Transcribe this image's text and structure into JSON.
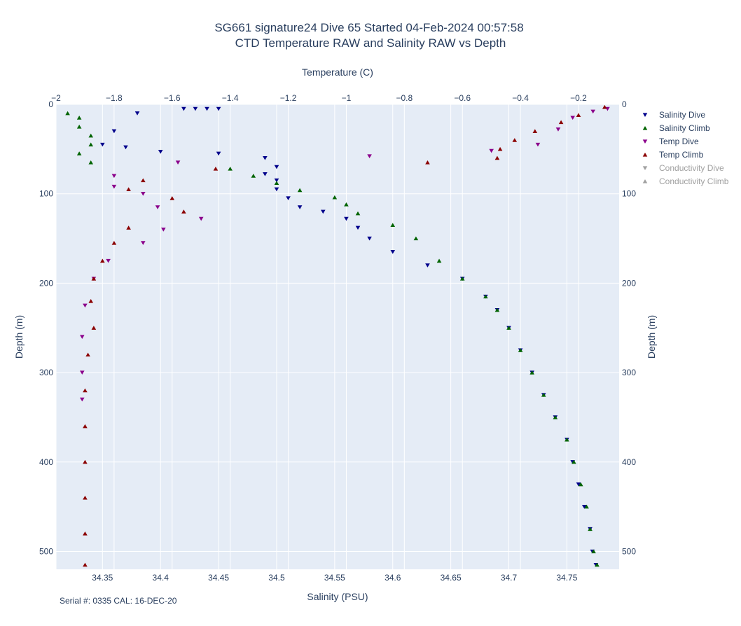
{
  "chart_data": {
    "type": "scatter",
    "title": "SG661 signature24 Dive 65 Started 04-Feb-2024 00:57:58",
    "subtitle": "CTD Temperature RAW and Salinity RAW vs Depth",
    "xlabel_top": "Temperature (C)",
    "xlabel_bottom": "Salinity (PSU)",
    "ylabel_left": "Depth (m)",
    "ylabel_right": "Depth (m)",
    "footnote": "Serial #: 0335  CAL: 16-DEC-20",
    "xlim_temperature": [
      -2.0,
      -0.06
    ],
    "xlim_salinity": [
      34.31,
      34.795
    ],
    "ylim_depth": [
      520,
      0
    ],
    "temperature_ticks": [
      "−2",
      "−1.8",
      "−1.6",
      "−1.4",
      "−1.2",
      "−1",
      "−0.8",
      "−0.6",
      "−0.4",
      "−0.2"
    ],
    "salinity_ticks": [
      "34.35",
      "34.4",
      "34.45",
      "34.5",
      "34.55",
      "34.6",
      "34.65",
      "34.7",
      "34.75"
    ],
    "depth_ticks": [
      "0",
      "100",
      "200",
      "300",
      "400",
      "500"
    ],
    "grid": true,
    "legend_position": "right",
    "series": [
      {
        "name": "Salinity Dive",
        "axis": "salinity",
        "marker": "triangle-down",
        "color": "#00008b",
        "dim": false,
        "points": [
          [
            34.42,
            5
          ],
          [
            34.43,
            5
          ],
          [
            34.44,
            5
          ],
          [
            34.45,
            5
          ],
          [
            34.38,
            10
          ],
          [
            34.36,
            30
          ],
          [
            34.35,
            45
          ],
          [
            34.37,
            48
          ],
          [
            34.4,
            53
          ],
          [
            34.45,
            55
          ],
          [
            34.49,
            60
          ],
          [
            34.5,
            70
          ],
          [
            34.49,
            78
          ],
          [
            34.5,
            85
          ],
          [
            34.5,
            95
          ],
          [
            34.51,
            105
          ],
          [
            34.52,
            115
          ],
          [
            34.54,
            120
          ],
          [
            34.56,
            128
          ],
          [
            34.57,
            138
          ],
          [
            34.58,
            150
          ],
          [
            34.6,
            165
          ],
          [
            34.63,
            180
          ],
          [
            34.66,
            195
          ],
          [
            34.68,
            215
          ],
          [
            34.69,
            230
          ],
          [
            34.7,
            250
          ],
          [
            34.71,
            275
          ],
          [
            34.72,
            300
          ],
          [
            34.73,
            325
          ],
          [
            34.74,
            350
          ],
          [
            34.75,
            375
          ],
          [
            34.755,
            400
          ],
          [
            34.76,
            425
          ],
          [
            34.765,
            450
          ],
          [
            34.77,
            475
          ],
          [
            34.772,
            500
          ],
          [
            34.775,
            515
          ]
        ]
      },
      {
        "name": "Salinity Climb",
        "axis": "salinity",
        "marker": "triangle-up",
        "color": "#006400",
        "dim": false,
        "points": [
          [
            34.32,
            10
          ],
          [
            34.33,
            15
          ],
          [
            34.33,
            25
          ],
          [
            34.34,
            35
          ],
          [
            34.34,
            45
          ],
          [
            34.33,
            55
          ],
          [
            34.34,
            65
          ],
          [
            34.46,
            72
          ],
          [
            34.48,
            80
          ],
          [
            34.5,
            88
          ],
          [
            34.52,
            96
          ],
          [
            34.55,
            104
          ],
          [
            34.56,
            112
          ],
          [
            34.57,
            122
          ],
          [
            34.6,
            135
          ],
          [
            34.62,
            150
          ],
          [
            34.64,
            175
          ],
          [
            34.66,
            195
          ],
          [
            34.68,
            215
          ],
          [
            34.69,
            230
          ],
          [
            34.7,
            250
          ],
          [
            34.71,
            275
          ],
          [
            34.72,
            300
          ],
          [
            34.73,
            325
          ],
          [
            34.74,
            350
          ],
          [
            34.75,
            375
          ],
          [
            34.756,
            400
          ],
          [
            34.762,
            425
          ],
          [
            34.767,
            450
          ],
          [
            34.77,
            475
          ],
          [
            34.773,
            500
          ],
          [
            34.776,
            515
          ]
        ]
      },
      {
        "name": "Temp Dive",
        "axis": "temperature",
        "marker": "triangle-down",
        "color": "#8b008b",
        "dim": false,
        "points": [
          [
            -0.1,
            5
          ],
          [
            -0.15,
            8
          ],
          [
            -0.22,
            15
          ],
          [
            -0.27,
            28
          ],
          [
            -0.34,
            45
          ],
          [
            -0.5,
            52
          ],
          [
            -0.92,
            58
          ],
          [
            -1.58,
            65
          ],
          [
            -1.8,
            80
          ],
          [
            -1.8,
            92
          ],
          [
            -1.7,
            100
          ],
          [
            -1.65,
            115
          ],
          [
            -1.5,
            128
          ],
          [
            -1.63,
            140
          ],
          [
            -1.7,
            155
          ],
          [
            -1.82,
            175
          ],
          [
            -1.87,
            195
          ],
          [
            -1.9,
            225
          ],
          [
            -1.91,
            260
          ],
          [
            -1.91,
            300
          ],
          [
            -1.91,
            330
          ]
        ]
      },
      {
        "name": "Temp Climb",
        "axis": "temperature",
        "marker": "triangle-up",
        "color": "#8b0000",
        "dim": false,
        "points": [
          [
            -0.11,
            3
          ],
          [
            -0.2,
            12
          ],
          [
            -0.26,
            20
          ],
          [
            -0.35,
            30
          ],
          [
            -0.42,
            40
          ],
          [
            -0.47,
            50
          ],
          [
            -0.48,
            60
          ],
          [
            -0.72,
            65
          ],
          [
            -1.45,
            72
          ],
          [
            -1.7,
            85
          ],
          [
            -1.75,
            95
          ],
          [
            -1.6,
            105
          ],
          [
            -1.56,
            120
          ],
          [
            -1.75,
            138
          ],
          [
            -1.8,
            155
          ],
          [
            -1.84,
            175
          ],
          [
            -1.87,
            195
          ],
          [
            -1.88,
            220
          ],
          [
            -1.87,
            250
          ],
          [
            -1.89,
            280
          ],
          [
            -1.9,
            320
          ],
          [
            -1.9,
            360
          ],
          [
            -1.9,
            400
          ],
          [
            -1.9,
            440
          ],
          [
            -1.9,
            480
          ],
          [
            -1.9,
            515
          ]
        ]
      },
      {
        "name": "Conductivity Dive",
        "axis": "none",
        "marker": "triangle-down",
        "color": "#a0a0a0",
        "dim": true,
        "points": []
      },
      {
        "name": "Conductivity Climb",
        "axis": "none",
        "marker": "triangle-up",
        "color": "#a0a0a0",
        "dim": true,
        "points": []
      }
    ]
  }
}
